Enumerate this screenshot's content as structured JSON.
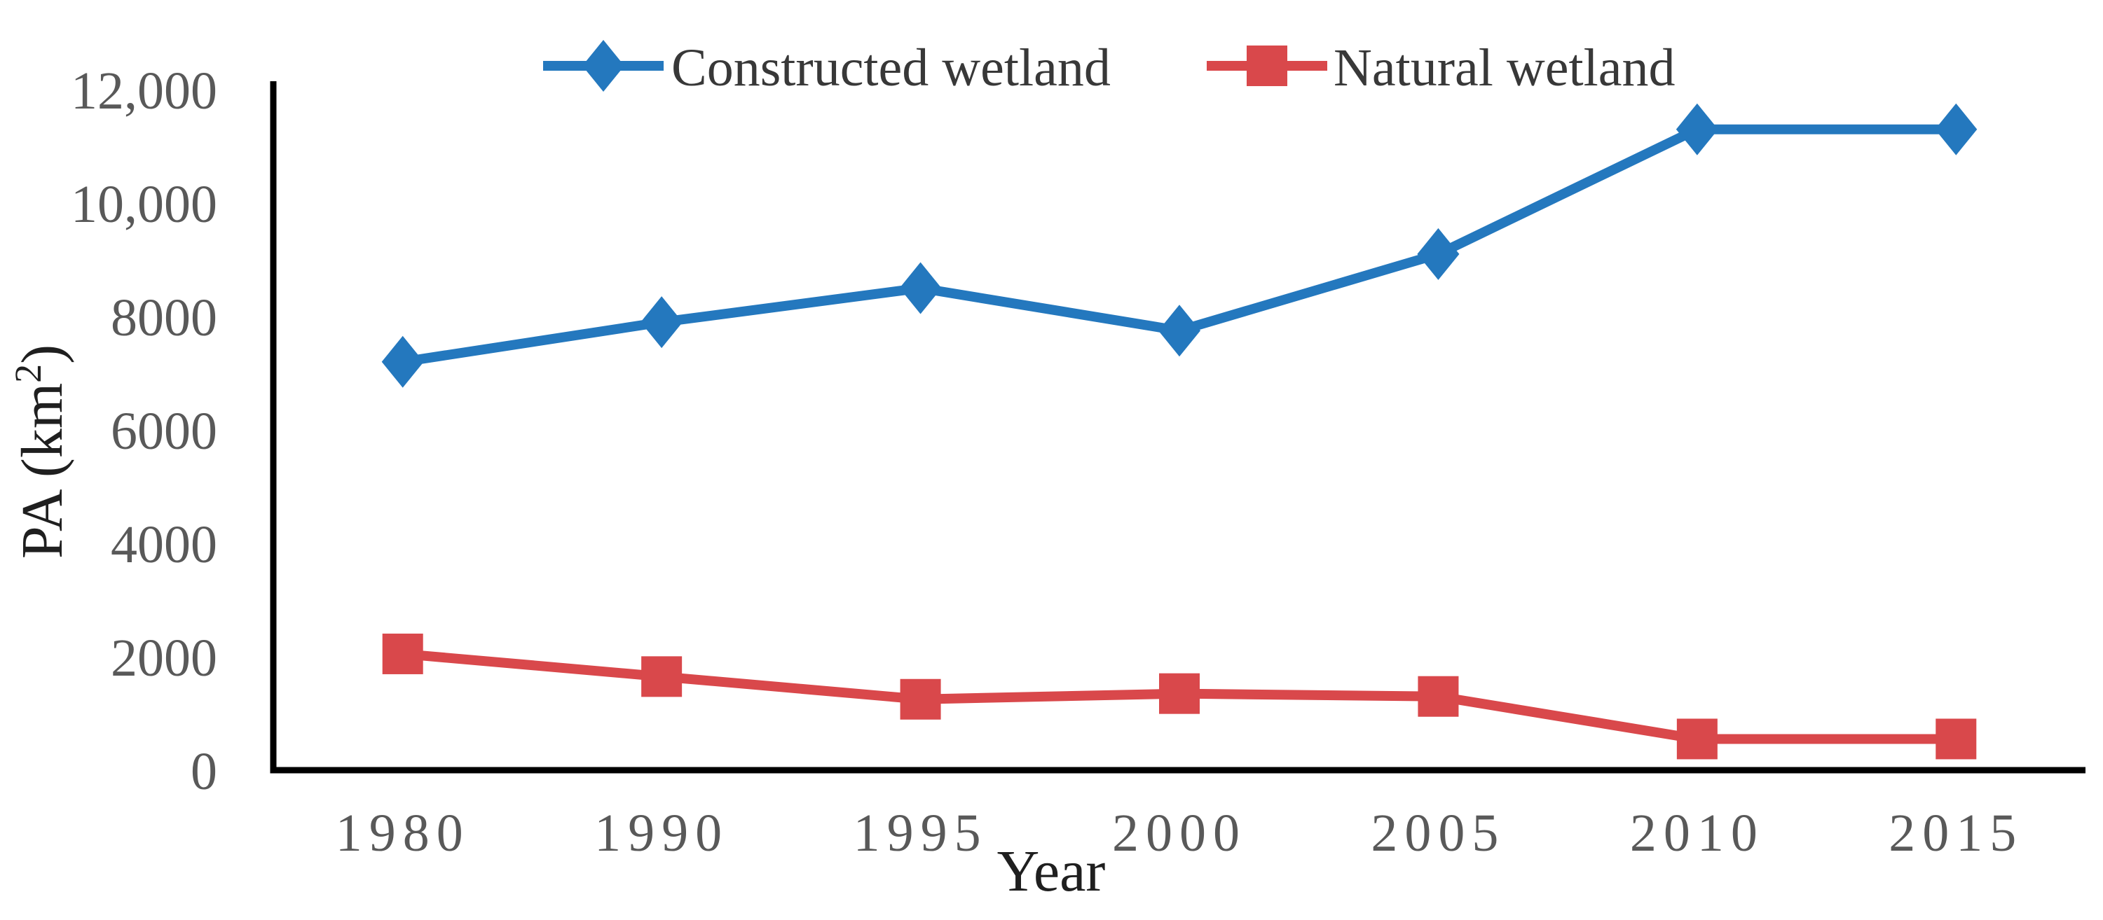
{
  "chart_data": {
    "type": "line",
    "categories": [
      "1980",
      "1990",
      "1995",
      "2000",
      "2005",
      "2010",
      "2015"
    ],
    "series": [
      {
        "name": "Constructed wetland",
        "values": [
          7200,
          7900,
          8500,
          7750,
          9100,
          11300,
          11300
        ],
        "color": "#2478BE",
        "marker": "diamond"
      },
      {
        "name": "Natural wetland",
        "values": [
          2050,
          1650,
          1250,
          1350,
          1300,
          550,
          550
        ],
        "color": "#D9484B",
        "marker": "square"
      }
    ],
    "xlabel": "Year",
    "ylabel": "PA (km²)",
    "ylabel_rich": {
      "pre": "PA (km",
      "sup": "2",
      "post": ")"
    },
    "ylim": [
      0,
      12000
    ],
    "ytick_interval": 2000,
    "ytick_labels": [
      "0",
      "2000",
      "4000",
      "6000",
      "8000",
      "10,000",
      "12,000"
    ],
    "grid": false,
    "legend_position": "top-center",
    "axis_color": "#000000",
    "tick_label_color": "#595959"
  }
}
